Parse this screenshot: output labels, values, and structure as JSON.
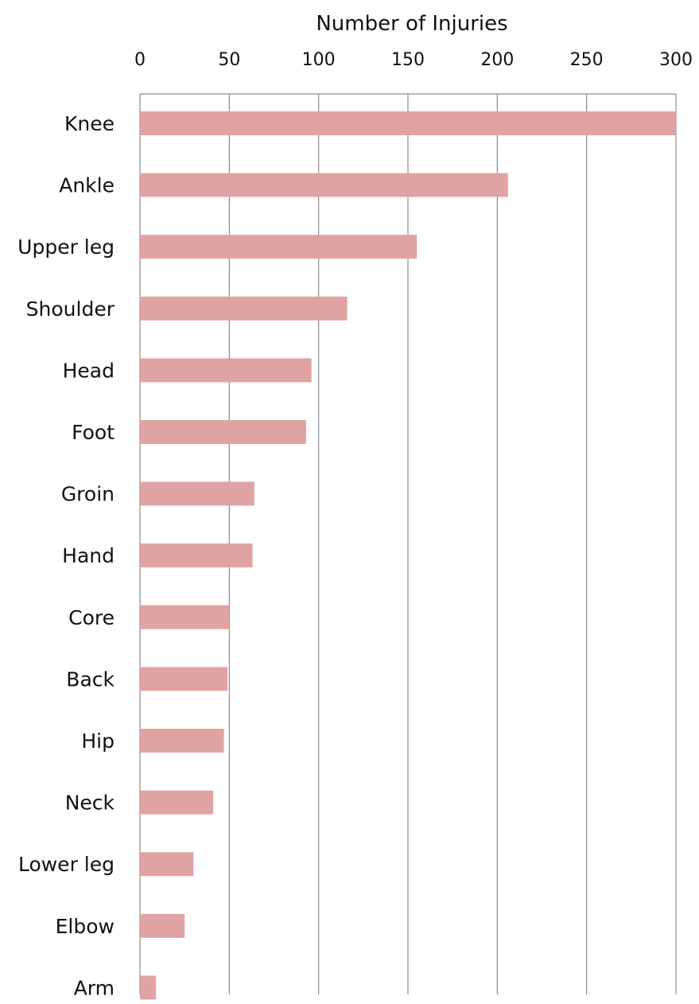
{
  "chart_data": {
    "type": "bar",
    "orientation": "horizontal",
    "title": "",
    "xlabel": "Number of Injuries",
    "ylabel": "",
    "xlim": [
      0,
      300
    ],
    "xticks": [
      0,
      50,
      100,
      150,
      200,
      250,
      300
    ],
    "x_axis_position": "top",
    "grid": true,
    "legend": "none",
    "bar_color": "#e0a3a3",
    "categories": [
      "Knee",
      "Ankle",
      "Upper leg",
      "Shoulder",
      "Head",
      "Foot",
      "Groin",
      "Hand",
      "Core",
      "Back",
      "Hip",
      "Neck",
      "Lower leg",
      "Elbow",
      "Arm"
    ],
    "values": [
      300,
      206,
      155,
      116,
      96,
      93,
      64,
      63,
      50,
      49,
      47,
      41,
      30,
      25,
      9
    ]
  }
}
